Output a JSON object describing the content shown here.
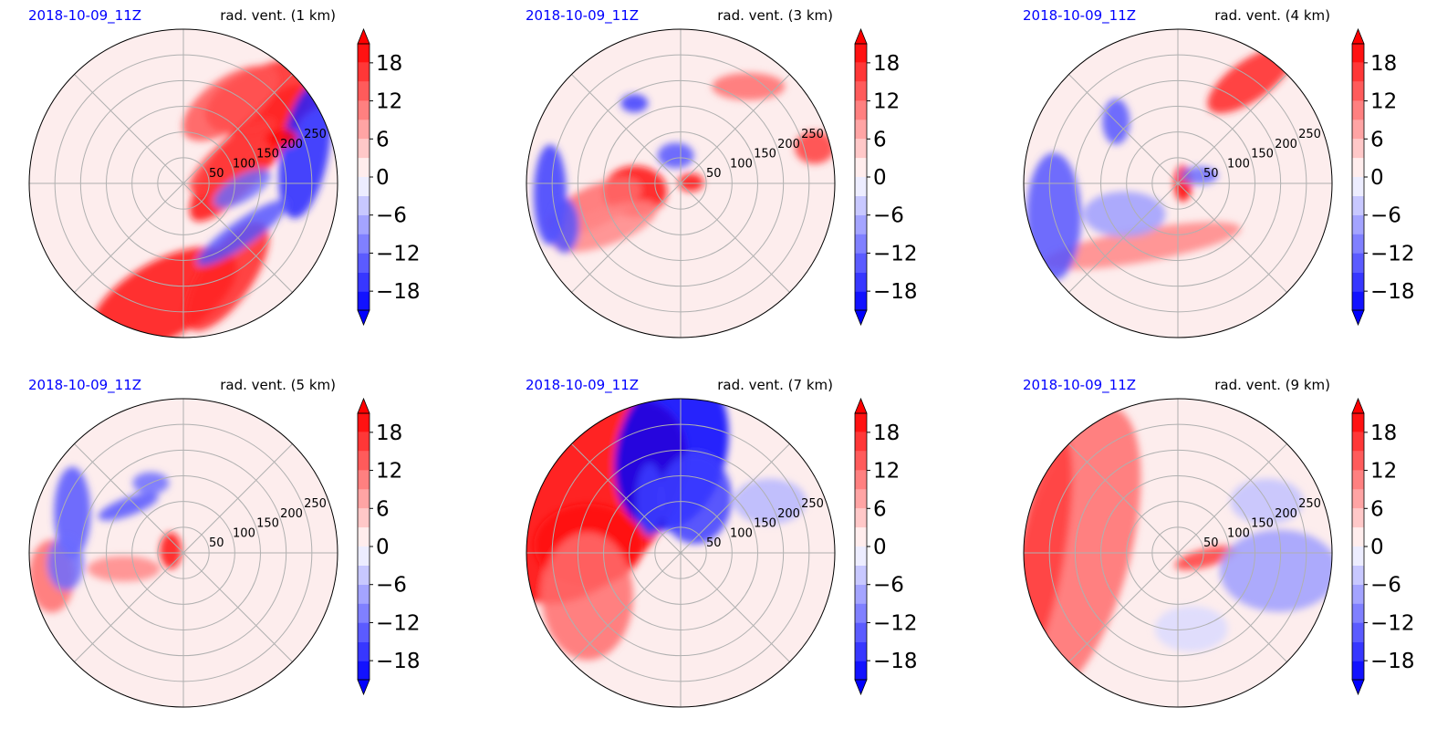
{
  "figure": {
    "colors": {
      "positive": "#ff0000",
      "negative": "#0000ff",
      "grid": "#b0b0b0"
    }
  },
  "chart_data": [
    {
      "type": "heatmap",
      "projection": "polar",
      "date_label": "2018-10-09_11Z",
      "title": "rad. vent. (1 km)",
      "radial_ticks": [
        50,
        100,
        150,
        200,
        250
      ],
      "radial_max": 300,
      "colorbar": {
        "ticks": [
          18,
          12,
          6,
          0,
          -6,
          -12,
          -18
        ],
        "range": [
          -21,
          21
        ],
        "extend": "both",
        "colormap": "bwr"
      },
      "features": [
        {
          "sign": "+",
          "theta": -100,
          "r": 230,
          "rx": 90,
          "ry": 42,
          "rot": -30,
          "v": 20
        },
        {
          "sign": "+",
          "theta": -65,
          "r": 200,
          "rx": 70,
          "ry": 28,
          "rot": -55,
          "v": 18
        },
        {
          "sign": "+",
          "theta": 25,
          "r": 140,
          "rx": 28,
          "ry": 95,
          "rot": 40,
          "v": 20
        },
        {
          "sign": "+",
          "theta": 45,
          "r": 240,
          "rx": 75,
          "ry": 35,
          "rot": -20,
          "v": 18
        },
        {
          "sign": "+",
          "theta": 30,
          "r": 110,
          "rx": 60,
          "ry": 18,
          "rot": -40,
          "v": 16
        },
        {
          "sign": "+",
          "theta": 60,
          "r": 180,
          "rx": 60,
          "ry": 28,
          "rot": -35,
          "v": 14
        },
        {
          "sign": "-",
          "theta": 15,
          "r": 245,
          "rx": 26,
          "ry": 75,
          "rot": 10,
          "v": -18
        },
        {
          "sign": "-",
          "theta": -40,
          "r": 150,
          "rx": 60,
          "ry": 14,
          "rot": -35,
          "v": -14
        },
        {
          "sign": "-",
          "theta": -5,
          "r": 115,
          "rx": 35,
          "ry": 14,
          "rot": -30,
          "v": -12
        },
        {
          "sign": "+",
          "theta": 25,
          "r": 210,
          "rx": 18,
          "ry": 10,
          "rot": 0,
          "v": 20
        }
      ]
    },
    {
      "type": "heatmap",
      "projection": "polar",
      "date_label": "2018-10-09_11Z",
      "title": "rad. vent. (3 km)",
      "radial_ticks": [
        50,
        100,
        150,
        200,
        250
      ],
      "radial_max": 300,
      "colorbar": {
        "ticks": [
          18,
          12,
          6,
          0,
          -6,
          -12,
          -18
        ],
        "range": [
          -21,
          21
        ],
        "extend": "both",
        "colormap": "bwr"
      },
      "features": [
        {
          "sign": "+",
          "theta": -170,
          "r": 90,
          "rx": 35,
          "ry": 28,
          "rot": 0,
          "v": 20
        },
        {
          "sign": "+",
          "theta": -165,
          "r": 175,
          "rx": 55,
          "ry": 22,
          "rot": -25,
          "v": 12
        },
        {
          "sign": "+",
          "theta": -150,
          "r": 170,
          "rx": 60,
          "ry": 20,
          "rot": -20,
          "v": 10
        },
        {
          "sign": "+",
          "theta": 5,
          "r": 20,
          "rx": 14,
          "ry": 10,
          "rot": 0,
          "v": 20
        },
        {
          "sign": "+",
          "theta": 55,
          "r": 230,
          "rx": 40,
          "ry": 15,
          "rot": 0,
          "v": 12
        },
        {
          "sign": "+",
          "theta": 15,
          "r": 270,
          "rx": 22,
          "ry": 18,
          "rot": 0,
          "v": 16
        },
        {
          "sign": "-",
          "theta": -175,
          "r": 255,
          "rx": 18,
          "ry": 55,
          "rot": 0,
          "v": -16
        },
        {
          "sign": "-",
          "theta": -160,
          "r": 240,
          "rx": 16,
          "ry": 30,
          "rot": 0,
          "v": -14
        },
        {
          "sign": "-",
          "theta": 120,
          "r": 180,
          "rx": 15,
          "ry": 10,
          "rot": 0,
          "v": -16
        },
        {
          "sign": "-",
          "theta": 100,
          "r": 55,
          "rx": 20,
          "ry": 14,
          "rot": 0,
          "v": -14
        }
      ]
    },
    {
      "type": "heatmap",
      "projection": "polar",
      "date_label": "2018-10-09_11Z",
      "title": "rad. vent. (4 km)",
      "radial_ticks": [
        50,
        100,
        150,
        200,
        250
      ],
      "radial_max": 300,
      "colorbar": {
        "ticks": [
          18,
          12,
          6,
          0,
          -6,
          -12,
          -18
        ],
        "range": [
          -21,
          21
        ],
        "extend": "both",
        "colormap": "bwr"
      },
      "features": [
        {
          "sign": "+",
          "theta": 0,
          "r": 10,
          "rx": 10,
          "ry": 20,
          "rot": 0,
          "v": 22
        },
        {
          "sign": "+",
          "theta": -120,
          "r": 140,
          "rx": 110,
          "ry": 18,
          "rot": -10,
          "v": 10
        },
        {
          "sign": "+",
          "theta": 55,
          "r": 245,
          "rx": 55,
          "ry": 22,
          "rot": -35,
          "v": 18
        },
        {
          "sign": "-",
          "theta": 135,
          "r": 170,
          "rx": 15,
          "ry": 25,
          "rot": 0,
          "v": -14
        },
        {
          "sign": "-",
          "theta": -165,
          "r": 250,
          "rx": 30,
          "ry": 70,
          "rot": 0,
          "v": -14
        },
        {
          "sign": "-",
          "theta": -150,
          "r": 120,
          "rx": 45,
          "ry": 25,
          "rot": 0,
          "v": -8
        },
        {
          "sign": "-",
          "theta": 20,
          "r": 45,
          "rx": 20,
          "ry": 10,
          "rot": 0,
          "v": -12
        }
      ]
    },
    {
      "type": "heatmap",
      "projection": "polar",
      "date_label": "2018-10-09_11Z",
      "title": "rad. vent. (5 km)",
      "radial_ticks": [
        50,
        100,
        150,
        200,
        250
      ],
      "radial_max": 300,
      "colorbar": {
        "ticks": [
          18,
          12,
          6,
          0,
          -6,
          -12,
          -18
        ],
        "range": [
          -21,
          21
        ],
        "extend": "both",
        "colormap": "bwr"
      },
      "features": [
        {
          "sign": "+",
          "theta": 170,
          "r": 25,
          "rx": 12,
          "ry": 20,
          "rot": 0,
          "v": 20
        },
        {
          "sign": "+",
          "theta": -170,
          "r": 260,
          "rx": 25,
          "ry": 40,
          "rot": 0,
          "v": 12
        },
        {
          "sign": "+",
          "theta": -165,
          "r": 120,
          "rx": 40,
          "ry": 14,
          "rot": 0,
          "v": 10
        },
        {
          "sign": "-",
          "theta": 140,
          "r": 140,
          "rx": 35,
          "ry": 10,
          "rot": -20,
          "v": -14
        },
        {
          "sign": "-",
          "theta": 160,
          "r": 230,
          "rx": 20,
          "ry": 50,
          "rot": 0,
          "v": -14
        },
        {
          "sign": "-",
          "theta": 115,
          "r": 150,
          "rx": 20,
          "ry": 12,
          "rot": 0,
          "v": -12
        },
        {
          "sign": "-",
          "theta": -175,
          "r": 230,
          "rx": 20,
          "ry": 30,
          "rot": 0,
          "v": -12
        }
      ]
    },
    {
      "type": "heatmap",
      "projection": "polar",
      "date_label": "2018-10-09_11Z",
      "title": "rad. vent. (7 km)",
      "radial_ticks": [
        50,
        100,
        150,
        200,
        250
      ],
      "radial_max": 300,
      "colorbar": {
        "ticks": [
          18,
          12,
          6,
          0,
          -6,
          -12,
          -18
        ],
        "range": [
          -21,
          21
        ],
        "extend": "both",
        "colormap": "bwr"
      },
      "features": [
        {
          "sign": "+",
          "theta": 150,
          "r": 200,
          "rx": 130,
          "ry": 80,
          "rot": -50,
          "v": 22
        },
        {
          "sign": "+",
          "theta": 175,
          "r": 180,
          "rx": 60,
          "ry": 45,
          "rot": 0,
          "v": 20
        },
        {
          "sign": "+",
          "theta": -155,
          "r": 200,
          "rx": 50,
          "ry": 70,
          "rot": 0,
          "v": 12
        },
        {
          "sign": "-",
          "theta": 95,
          "r": 200,
          "rx": 60,
          "ry": 90,
          "rot": 15,
          "v": -22
        },
        {
          "sign": "-",
          "theta": 75,
          "r": 110,
          "rx": 40,
          "ry": 50,
          "rot": 0,
          "v": -16
        },
        {
          "sign": "-",
          "theta": 30,
          "r": 200,
          "rx": 40,
          "ry": 25,
          "rot": 0,
          "v": -6
        },
        {
          "sign": "-",
          "theta": 120,
          "r": 120,
          "rx": 15,
          "ry": 40,
          "rot": 0,
          "v": -16
        }
      ]
    },
    {
      "type": "heatmap",
      "projection": "polar",
      "date_label": "2018-10-09_11Z",
      "title": "rad. vent. (9 km)",
      "radial_ticks": [
        50,
        100,
        150,
        200,
        250
      ],
      "radial_max": 300,
      "colorbar": {
        "ticks": [
          18,
          12,
          6,
          0,
          -6,
          -12,
          -18
        ],
        "range": [
          -21,
          21
        ],
        "extend": "both",
        "colormap": "bwr"
      },
      "features": [
        {
          "sign": "+",
          "theta": 180,
          "r": 200,
          "rx": 60,
          "ry": 165,
          "rot": 15,
          "v": 12
        },
        {
          "sign": "+",
          "theta": 180,
          "r": 265,
          "rx": 25,
          "ry": 130,
          "rot": 10,
          "v": 16
        },
        {
          "sign": "+",
          "theta": -10,
          "r": 55,
          "rx": 35,
          "ry": 10,
          "rot": -15,
          "v": 16
        },
        {
          "sign": "-",
          "theta": -10,
          "r": 200,
          "rx": 65,
          "ry": 45,
          "rot": 0,
          "v": -8
        },
        {
          "sign": "-",
          "theta": 30,
          "r": 200,
          "rx": 40,
          "ry": 25,
          "rot": 0,
          "v": -5
        },
        {
          "sign": "-",
          "theta": -80,
          "r": 150,
          "rx": 40,
          "ry": 25,
          "rot": 0,
          "v": -3
        }
      ]
    }
  ]
}
